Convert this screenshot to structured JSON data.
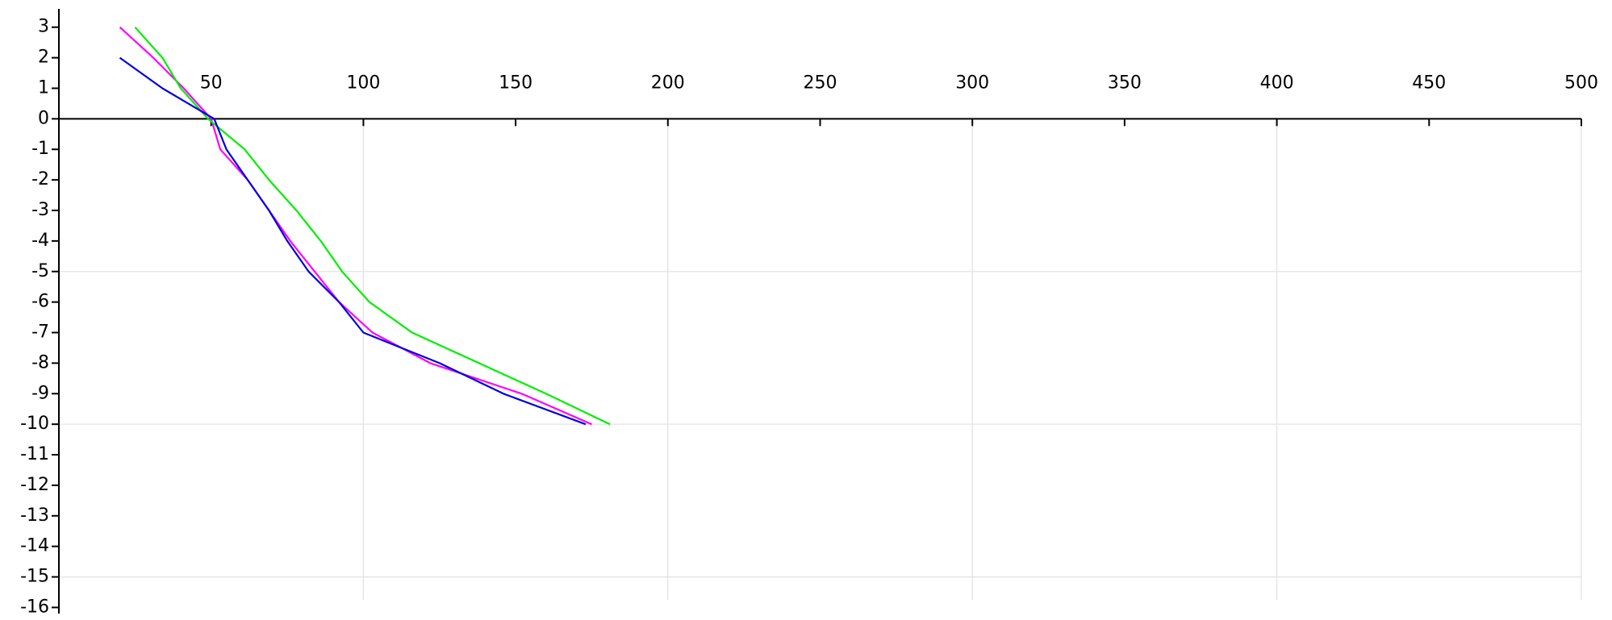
{
  "chart_data": {
    "type": "line",
    "xlim": [
      0,
      500
    ],
    "ylim": [
      -16.2,
      3.6
    ],
    "xticks": [
      50,
      100,
      150,
      200,
      250,
      300,
      350,
      400,
      450,
      500
    ],
    "yticks": [
      3,
      2,
      1,
      0,
      -1,
      -2,
      -3,
      -4,
      -5,
      -6,
      -7,
      -8,
      -9,
      -10,
      -11,
      -12,
      -13,
      -14,
      -15,
      -16
    ],
    "xgrid": [
      100,
      200,
      300,
      400,
      500
    ],
    "ygrid": [
      -5,
      -10,
      -15
    ],
    "grid_color": "#e3e3e3",
    "series": [
      {
        "color": "#ff00ff",
        "x": [
          20,
          31,
          41,
          50,
          53,
          62,
          69,
          76,
          84,
          92,
          103,
          122,
          152,
          175
        ],
        "values": [
          3,
          2,
          1,
          0,
          -1,
          -2,
          -3,
          -4,
          -5,
          -6,
          -7,
          -8,
          -9,
          -10
        ]
      },
      {
        "color": "#00ee00",
        "x": [
          25,
          34,
          40,
          49,
          61,
          69,
          78,
          86,
          93,
          102,
          116,
          138,
          160,
          181
        ],
        "values": [
          3,
          2,
          1,
          0,
          -1,
          -2,
          -3,
          -4,
          -5,
          -6,
          -7,
          -8,
          -9,
          -10
        ]
      },
      {
        "color": "#0000dd",
        "x": [
          20,
          34,
          51,
          55,
          62,
          69,
          75,
          82,
          92,
          100,
          125,
          146,
          173
        ],
        "values": [
          2,
          1,
          0,
          -1,
          -2,
          -3,
          -4,
          -5,
          -6,
          -7,
          -8,
          -9,
          -10
        ]
      }
    ]
  }
}
